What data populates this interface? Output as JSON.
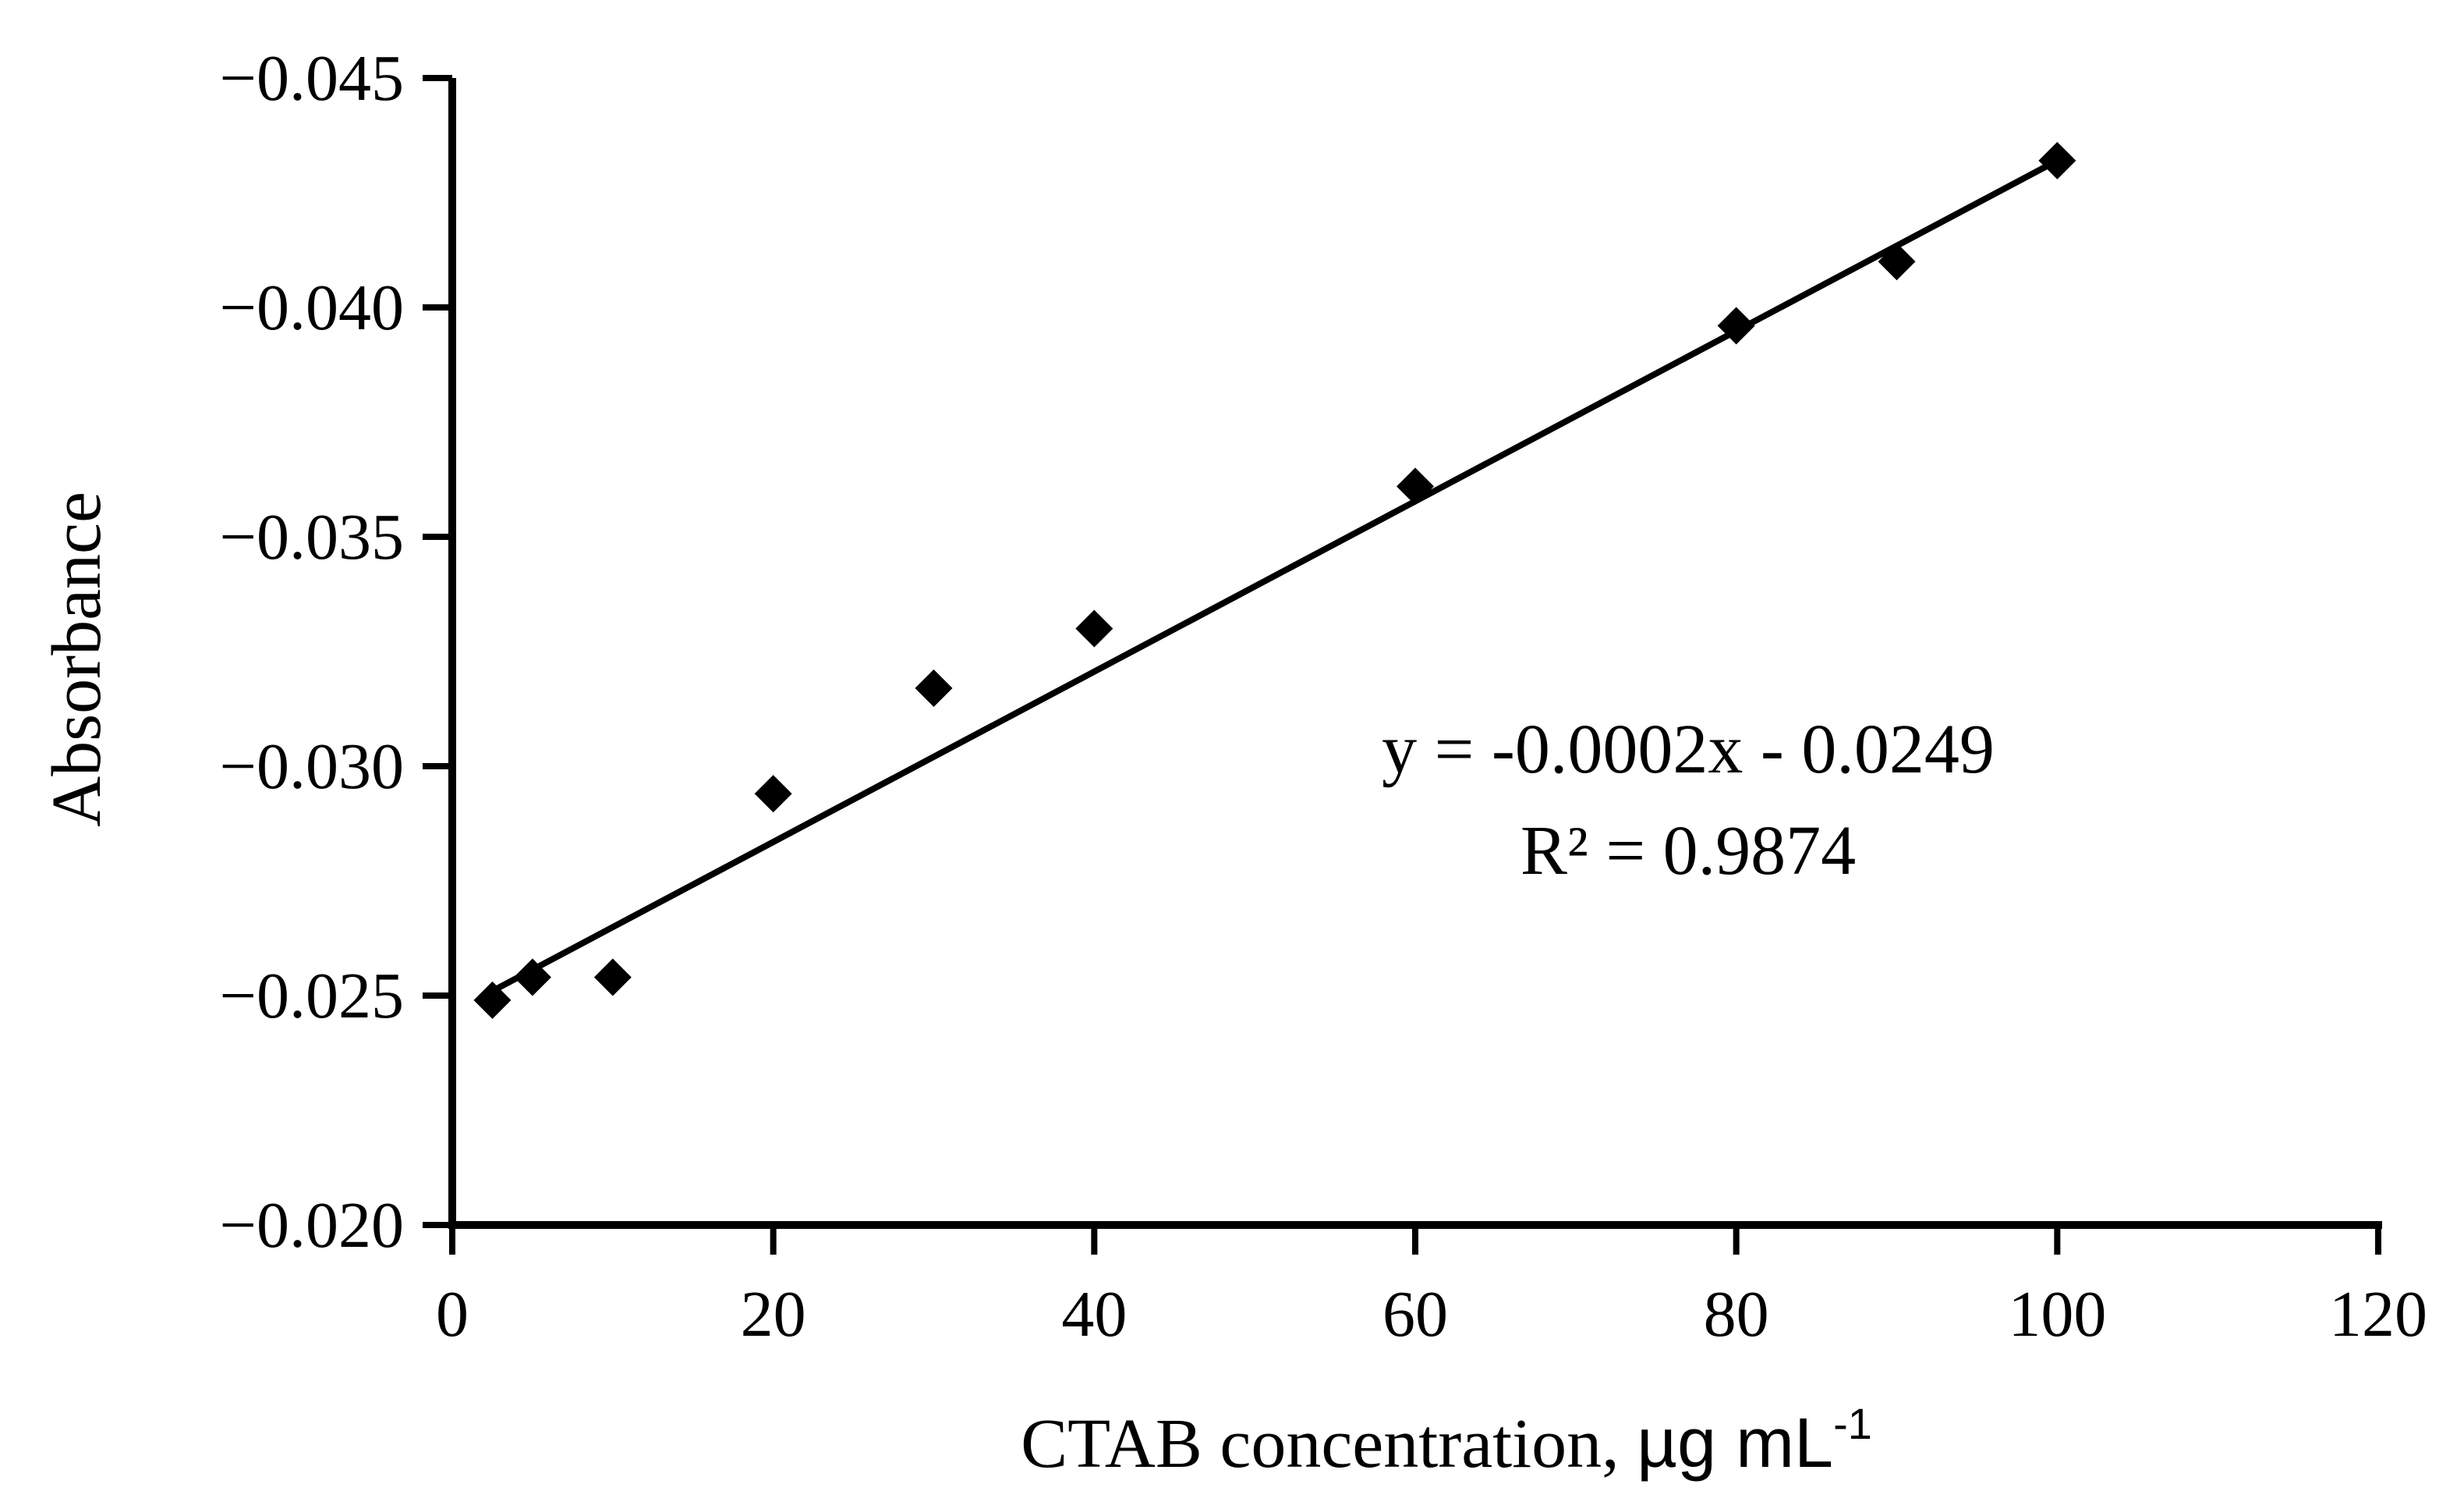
{
  "chart_data": {
    "type": "scatter",
    "title": "",
    "xlabel": "CTAB concentration, ",
    "xlabel_unit": "µg mL",
    "xlabel_unit_superscript": "-1",
    "ylabel": "Absorbance",
    "xlim": [
      0,
      120
    ],
    "ylim": [
      -0.02,
      -0.045
    ],
    "y_axis_reversed": true,
    "grid": false,
    "legend": "none",
    "x_ticks": [
      0,
      20,
      40,
      60,
      80,
      100,
      120
    ],
    "x_tick_labels": [
      "0",
      "20",
      "40",
      "60",
      "80",
      "100",
      "120"
    ],
    "y_ticks": [
      -0.045,
      -0.04,
      -0.035,
      -0.03,
      -0.025,
      -0.02
    ],
    "y_tick_labels": [
      "−0.045",
      "−0.040",
      "−0.035",
      "−0.030",
      "−0.025",
      "−0.020"
    ],
    "series": [
      {
        "marker": "diamond",
        "color": "#000000",
        "points": [
          {
            "x": 2.5,
            "y": -0.0249
          },
          {
            "x": 5,
            "y": -0.0254
          },
          {
            "x": 10,
            "y": -0.0254
          },
          {
            "x": 20,
            "y": -0.0294
          },
          {
            "x": 30,
            "y": -0.0317
          },
          {
            "x": 40,
            "y": -0.033
          },
          {
            "x": 60,
            "y": -0.0361
          },
          {
            "x": 80,
            "y": -0.0396
          },
          {
            "x": 90,
            "y": -0.041
          },
          {
            "x": 100,
            "y": -0.0432
          }
        ]
      }
    ],
    "trendline": {
      "type": "linear",
      "x_range": [
        2.5,
        100
      ],
      "y_range": [
        -0.0251,
        -0.0432
      ],
      "color": "#000000"
    },
    "annotations": {
      "equation": "y = -0.0002x - 0.0249",
      "r_squared": "R² = 0.9874"
    }
  }
}
